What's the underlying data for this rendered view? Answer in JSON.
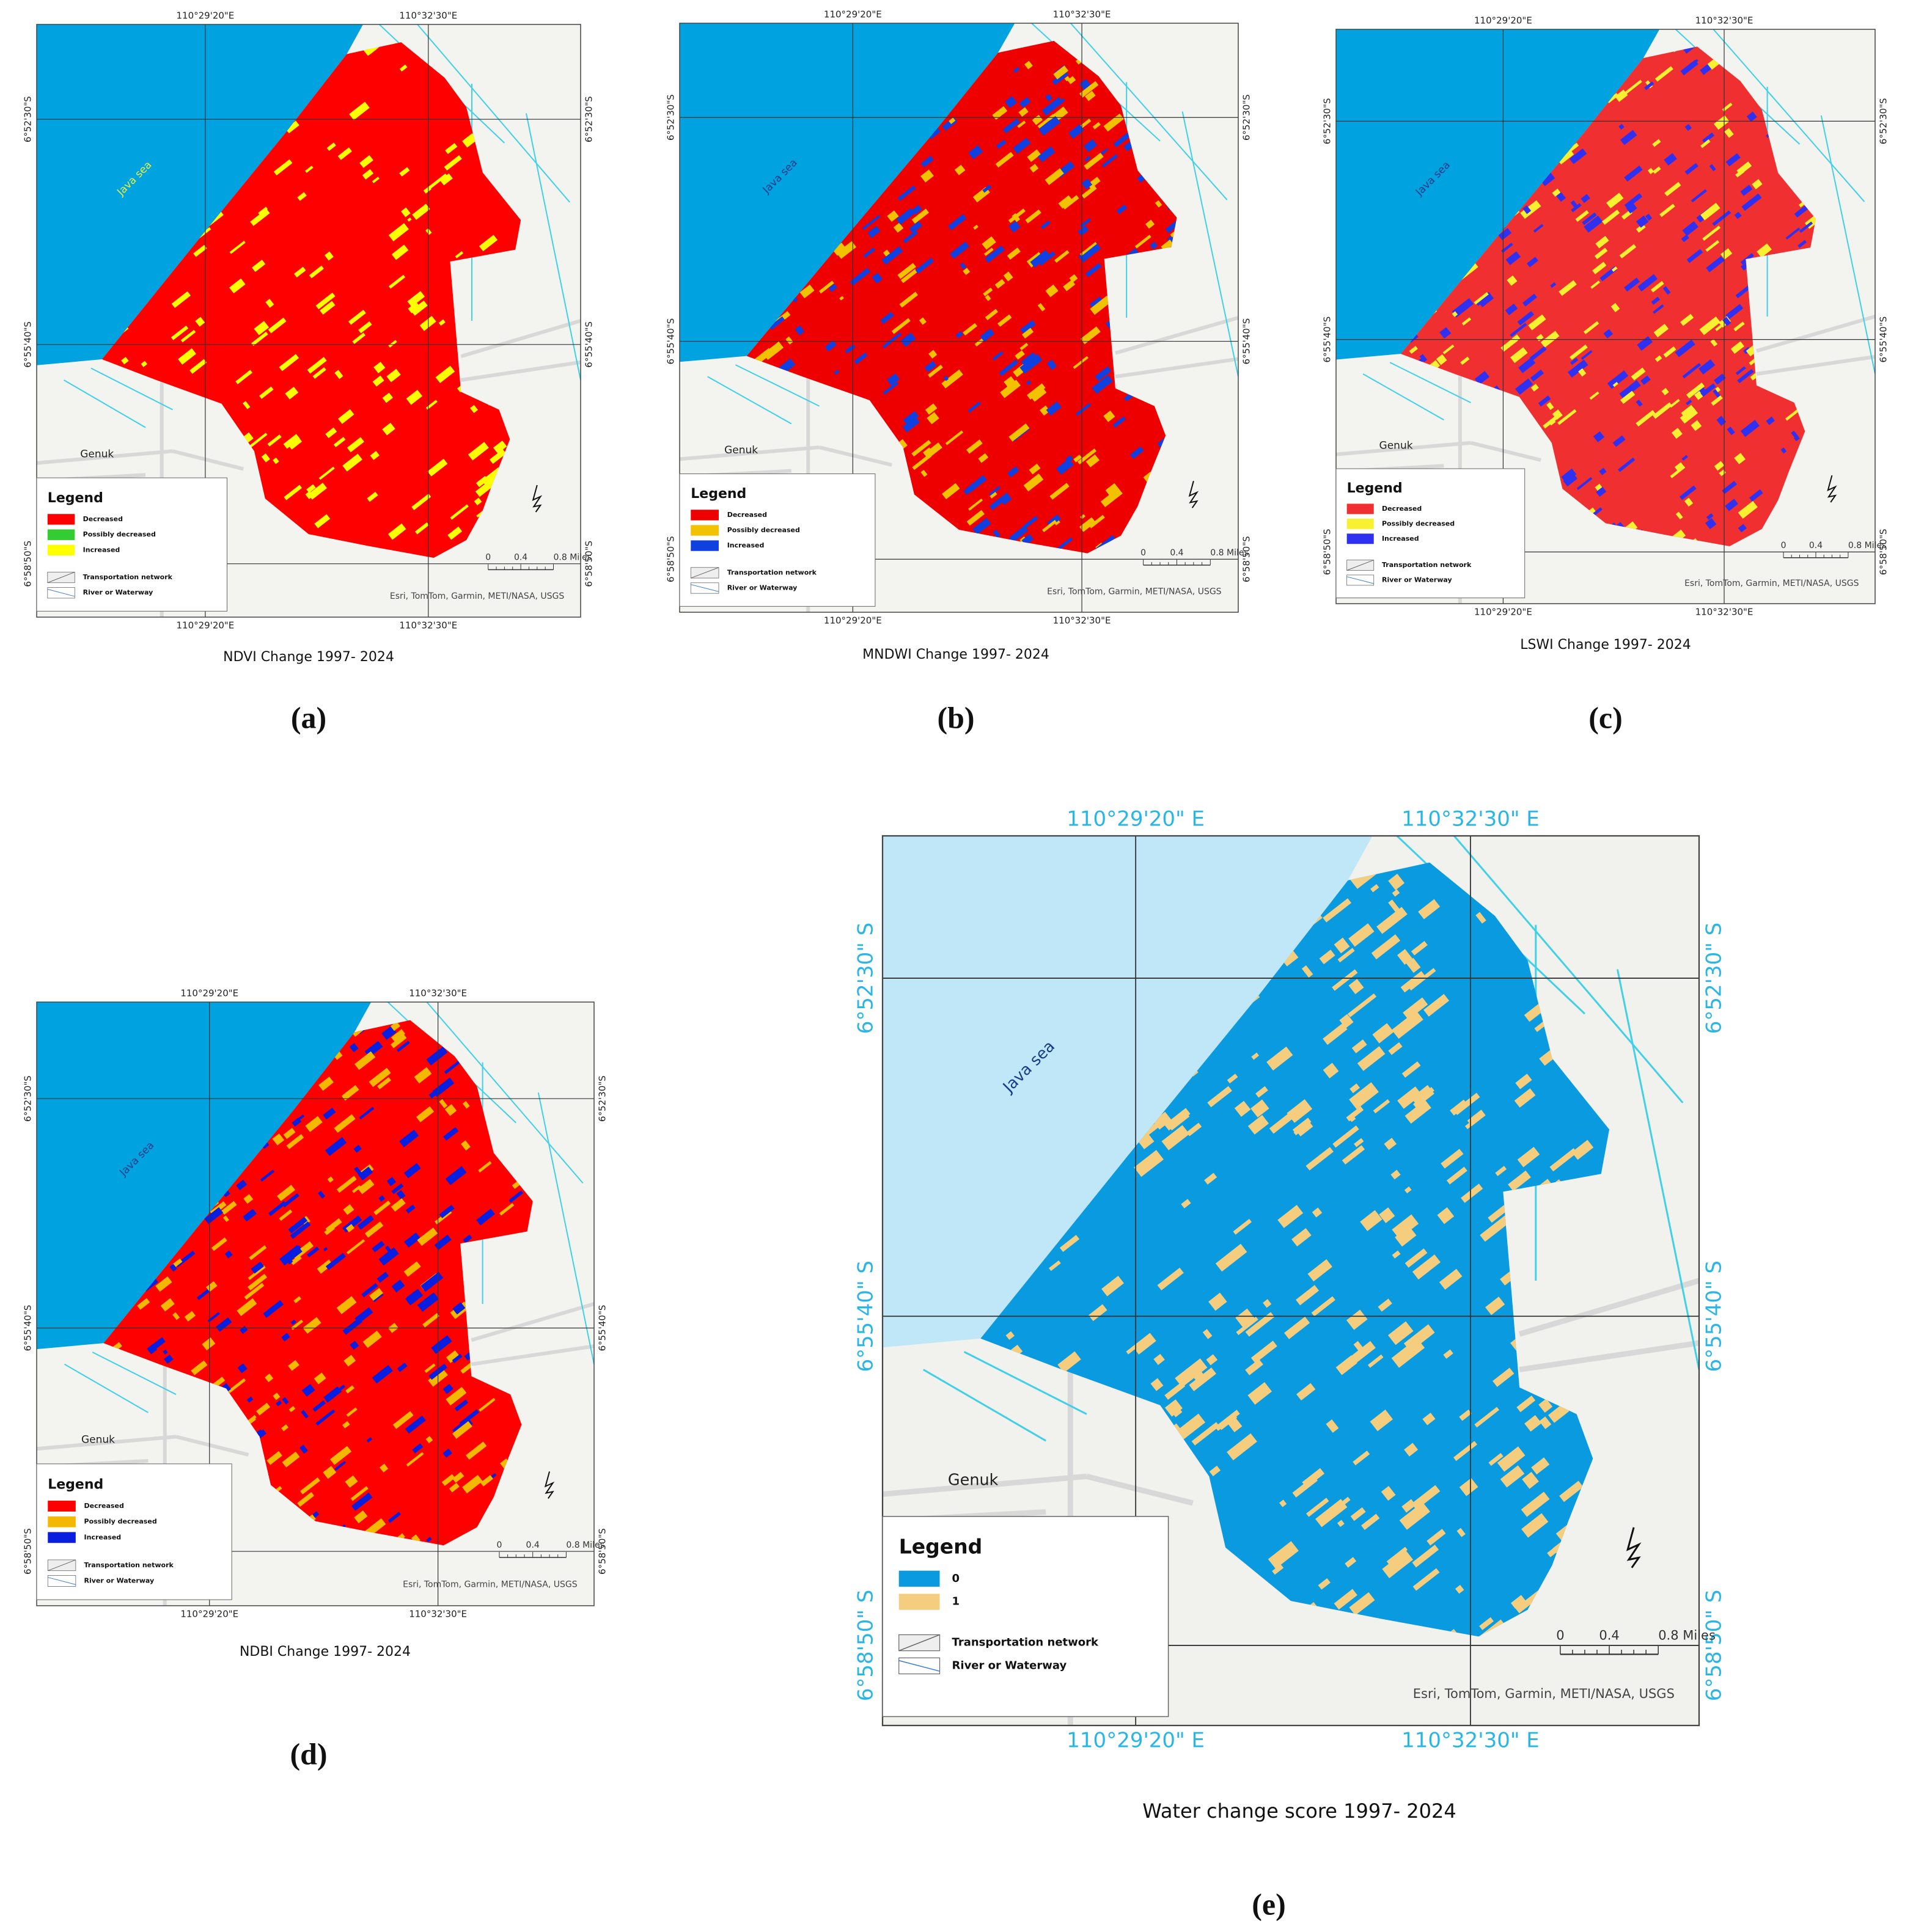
{
  "panels": [
    {
      "letter": "(a)",
      "caption": "NDVI Change 1997- 2024",
      "top_labels": [
        "110°29'20\"E",
        "110°32'30\"E"
      ],
      "bottom_labels": [
        "110°29'20\"E",
        "110°32'30\"E"
      ],
      "left_labels": [
        "6°52'30\"S",
        "6°55'40\"S",
        "6°58'50\"S"
      ],
      "right_labels": [
        "6°52'30\"S",
        "6°55'40\"S",
        "6°58'50\"S"
      ],
      "sea": "Java sea",
      "town": "Genuk",
      "legend_title": "Legend",
      "legend_items": [
        {
          "label": "Decreased",
          "color": "#ff0000"
        },
        {
          "label": "Possibly decreased",
          "color": "#33cc33"
        },
        {
          "label": "Increased",
          "color": "#ffff00"
        }
      ],
      "network": "Transportation network",
      "river": "River or Waterway",
      "scale": [
        "0",
        "0.4",
        "0.8 Miles"
      ],
      "credits": "Esri, TomTom, Garmin, METI/NASA, USGS"
    },
    {
      "letter": "(b)",
      "caption": "MNDWI Change 1997- 2024",
      "top_labels": [
        "110°29'20\"E",
        "110°32'30\"E"
      ],
      "bottom_labels": [
        "110°29'20\"E",
        "110°32'30\"E"
      ],
      "left_labels": [
        "6°52'30\"S",
        "6°55'40\"S",
        "6°58'50\"S"
      ],
      "right_labels": [
        "6°52'30\"S",
        "6°55'40\"S",
        "6°58'50\"S"
      ],
      "sea": "Java sea",
      "town": "Genuk",
      "legend_title": "Legend",
      "legend_items": [
        {
          "label": "Decreased",
          "color": "#ee0000"
        },
        {
          "label": "Possibly decreased",
          "color": "#f2c200"
        },
        {
          "label": "Increased",
          "color": "#1040e0"
        }
      ],
      "network": "Transportation network",
      "river": "River or Waterway",
      "scale": [
        "0",
        "0.4",
        "0.8 Miles"
      ],
      "credits": "Esri, TomTom, Garmin, METI/NASA, USGS"
    },
    {
      "letter": "(c)",
      "caption": "LSWI Change 1997- 2024",
      "top_labels": [
        "110°29'20\"E",
        "110°32'30\"E"
      ],
      "bottom_labels": [
        "110°29'20\"E",
        "110°32'30\"E"
      ],
      "left_labels": [
        "6°52'30\"S",
        "6°55'40\"S",
        "6°58'50\"S"
      ],
      "right_labels": [
        "6°52'30\"S",
        "6°55'40\"S",
        "6°58'50\"S"
      ],
      "sea": "Java sea",
      "town": "Genuk",
      "legend_title": "Legend",
      "legend_items": [
        {
          "label": "Decreased",
          "color": "#f03030"
        },
        {
          "label": "Possibly decreased",
          "color": "#f8f030"
        },
        {
          "label": "Increased",
          "color": "#3030f0"
        }
      ],
      "network": "Transportation network",
      "river": "River or Waterway",
      "scale": [
        "0",
        "0.4",
        "0.8 Miles"
      ],
      "credits": "Esri, TomTom, Garmin, METI/NASA, USGS"
    },
    {
      "letter": "(d)",
      "caption": "NDBI Change 1997- 2024",
      "top_labels": [
        "110°29'20\"E",
        "110°32'30\"E"
      ],
      "bottom_labels": [
        "110°29'20\"E",
        "110°32'30\"E"
      ],
      "left_labels": [
        "6°52'30\"S",
        "6°55'40\"S",
        "6°58'50\"S"
      ],
      "right_labels": [
        "6°52'30\"S",
        "6°55'40\"S",
        "6°58'50\"S"
      ],
      "sea": "Java sea",
      "town": "Genuk",
      "legend_title": "Legend",
      "legend_items": [
        {
          "label": "Decreased",
          "color": "#ff0000"
        },
        {
          "label": "Possibly decreased",
          "color": "#f5b800"
        },
        {
          "label": "Increased",
          "color": "#0a1ee0"
        }
      ],
      "network": "Transportation network",
      "river": "River or Waterway",
      "scale": [
        "0",
        "0.4",
        "0.8 Miles"
      ],
      "credits": "Esri, TomTom, Garmin, METI/NASA, USGS"
    },
    {
      "letter": "(e)",
      "caption": "Water change score 1997- 2024",
      "top_labels": [
        "110°29'20\" E",
        "110°32'30\" E"
      ],
      "bottom_labels": [
        "110°29'20\" E",
        "110°32'30\" E"
      ],
      "left_labels": [
        "6°52'30\" S",
        "6°55'40\" S",
        "6°58'50\" S"
      ],
      "right_labels": [
        "6°52'30\" S",
        "6°55'40\" S",
        "6°58'50\" S"
      ],
      "sea": "Java sea",
      "town": "Genuk",
      "legend_title": "Legend",
      "legend_items": [
        {
          "label": "0",
          "color": "#0a9ae0"
        },
        {
          "label": "1",
          "color": "#f5cd7e"
        }
      ],
      "network": "Transportation network",
      "river": "River or Waterway",
      "scale": [
        "0",
        "0.4",
        "0.8 Miles"
      ],
      "credits": "Esri, TomTom, Garmin, METI/NASA, USGS"
    }
  ]
}
